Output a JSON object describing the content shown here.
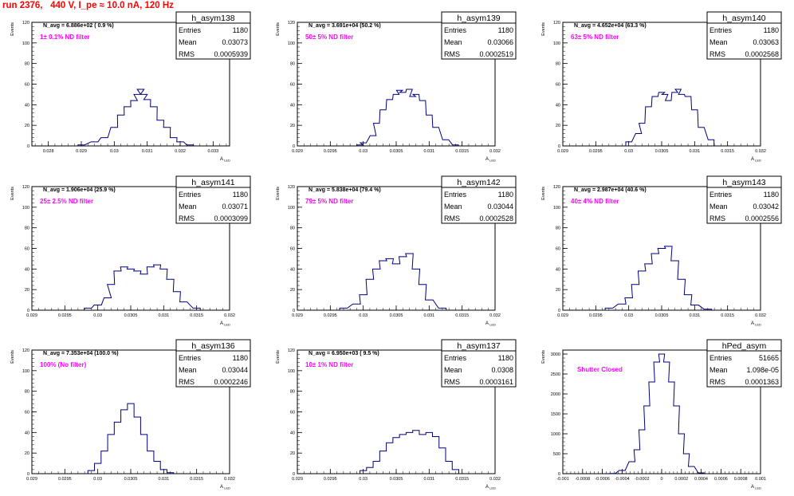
{
  "page_title": "run 2376,   440 V, I_pe ≈ 10.0 nA, 120 Hz",
  "stat_labels": {
    "entries": "Entries",
    "mean": "Mean",
    "rms": "RMS"
  },
  "yaxis_label": "Events",
  "xaxis_label": "A",
  "xaxis_sub": "LED",
  "colors": {
    "hist": "#000080",
    "annotation": "#ff00ff",
    "title": "#ff0000",
    "axis": "#000000"
  },
  "chart_data": [
    {
      "type": "bar",
      "name": "h_asym138",
      "navg": "N_avg = 6.886e+02 ( 0.9 %)",
      "note": "1± 0.1% ND filter",
      "stats": {
        "entries": "1180",
        "mean": "0.03073",
        "rms": "0.0005939"
      },
      "xlim": [
        0.0275,
        0.0335
      ],
      "ylim": [
        0,
        120
      ],
      "yticks": [
        0,
        20,
        40,
        60,
        80,
        100,
        120
      ],
      "xticks": [
        "0.028",
        "0.029",
        "0.03",
        "0.031",
        "0.032",
        "0.033"
      ],
      "xtick_vals": [
        0.028,
        0.029,
        0.03,
        0.031,
        0.032,
        0.033
      ],
      "x": [
        0.029,
        0.0294,
        0.0297,
        0.03,
        0.0302,
        0.0304,
        0.0306,
        0.0307,
        0.0308,
        0.0309,
        0.031,
        0.0312,
        0.0314,
        0.0316,
        0.0318,
        0.032,
        0.0323
      ],
      "values": [
        1,
        4,
        8,
        18,
        30,
        38,
        44,
        50,
        55,
        50,
        45,
        38,
        25,
        18,
        8,
        4,
        1
      ]
    },
    {
      "type": "bar",
      "name": "h_asym139",
      "navg": "N_avg = 3.691e+04 (50.2 %)",
      "note": "50± 5% ND filter",
      "stats": {
        "entries": "1180",
        "mean": "0.03066",
        "rms": "0.0002519"
      },
      "xlim": [
        0.029,
        0.032
      ],
      "ylim": [
        0,
        120
      ],
      "yticks": [
        0,
        20,
        40,
        60,
        80,
        100,
        120
      ],
      "xticks": [
        "0.029",
        "0.0295",
        "0.03",
        "0.0305",
        "0.031",
        "0.0315",
        "0.032"
      ],
      "xtick_vals": [
        0.029,
        0.0295,
        0.03,
        0.0305,
        0.031,
        0.0315,
        0.032
      ],
      "x": [
        0.02995,
        0.03,
        0.03015,
        0.0302,
        0.0303,
        0.0304,
        0.0305,
        0.03055,
        0.0306,
        0.0307,
        0.03075,
        0.0308,
        0.0309,
        0.031,
        0.0311,
        0.03125,
        0.0314
      ],
      "values": [
        1,
        3,
        10,
        22,
        35,
        45,
        50,
        54,
        52,
        55,
        48,
        50,
        44,
        30,
        18,
        6,
        1
      ]
    },
    {
      "type": "bar",
      "name": "h_asym140",
      "navg": "N_avg = 4.652e+04 (63.3 %)",
      "note": "63± 5% ND filter",
      "stats": {
        "entries": "1180",
        "mean": "0.03063",
        "rms": "0.0002568"
      },
      "xlim": [
        0.029,
        0.032
      ],
      "ylim": [
        0,
        120
      ],
      "yticks": [
        0,
        20,
        40,
        60,
        80,
        100,
        120
      ],
      "xticks": [
        "0.029",
        "0.0295",
        "0.03",
        "0.0305",
        "0.031",
        "0.0315",
        "0.032"
      ],
      "xtick_vals": [
        0.029,
        0.0295,
        0.03,
        0.0305,
        0.031,
        0.0315,
        0.032
      ],
      "x": [
        0.03,
        0.03015,
        0.0302,
        0.0303,
        0.0304,
        0.0305,
        0.03055,
        0.0306,
        0.0307,
        0.03075,
        0.0308,
        0.0309,
        0.031,
        0.0311,
        0.03125
      ],
      "values": [
        4,
        12,
        22,
        38,
        48,
        52,
        50,
        44,
        52,
        55,
        50,
        48,
        35,
        18,
        6
      ]
    },
    {
      "type": "bar",
      "name": "h_asym141",
      "navg": "N_avg = 1.906e+04 (25.9 %)",
      "note": "25± 2.5% ND filter",
      "stats": {
        "entries": "1180",
        "mean": "0.03071",
        "rms": "0.0003099"
      },
      "xlim": [
        0.029,
        0.032
      ],
      "ylim": [
        0,
        120
      ],
      "yticks": [
        0,
        20,
        40,
        60,
        80,
        100,
        120
      ],
      "xticks": [
        "0.029",
        "0.0295",
        "0.03",
        "0.0305",
        "0.031",
        "0.0315",
        "0.032"
      ],
      "xtick_vals": [
        0.029,
        0.0295,
        0.03,
        0.0305,
        0.031,
        0.0315,
        0.032
      ],
      "x": [
        0.02985,
        0.03,
        0.03015,
        0.0302,
        0.0303,
        0.0304,
        0.0305,
        0.0306,
        0.0307,
        0.0308,
        0.0309,
        0.031,
        0.0311,
        0.0312,
        0.0313,
        0.0315
      ],
      "values": [
        2,
        5,
        12,
        25,
        38,
        42,
        40,
        38,
        35,
        42,
        44,
        40,
        30,
        18,
        8,
        2
      ]
    },
    {
      "type": "bar",
      "name": "h_asym142",
      "navg": "N_avg = 5.838e+04 (79.4 %)",
      "note": "79± 5% ND filter",
      "stats": {
        "entries": "1180",
        "mean": "0.03044",
        "rms": "0.0002528"
      },
      "xlim": [
        0.029,
        0.032
      ],
      "ylim": [
        0,
        120
      ],
      "yticks": [
        0,
        20,
        40,
        60,
        80,
        100,
        120
      ],
      "xticks": [
        "0.029",
        "0.0295",
        "0.03",
        "0.0305",
        "0.031",
        "0.0315",
        "0.032"
      ],
      "xtick_vals": [
        0.029,
        0.0295,
        0.03,
        0.0305,
        0.031,
        0.0315,
        0.032
      ],
      "x": [
        0.0297,
        0.0299,
        0.03,
        0.0301,
        0.0302,
        0.0303,
        0.0304,
        0.0305,
        0.0306,
        0.0307,
        0.0308,
        0.0309,
        0.031,
        0.0312
      ],
      "values": [
        2,
        6,
        15,
        30,
        40,
        48,
        50,
        45,
        52,
        55,
        40,
        25,
        10,
        2
      ]
    },
    {
      "type": "bar",
      "name": "h_asym143",
      "navg": "N_avg = 2.987e+04 (40.6 %)",
      "note": "40± 4% ND filter",
      "stats": {
        "entries": "1180",
        "mean": "0.03042",
        "rms": "0.0002556"
      },
      "xlim": [
        0.029,
        0.032
      ],
      "ylim": [
        0,
        120
      ],
      "yticks": [
        0,
        20,
        40,
        60,
        80,
        100,
        120
      ],
      "xticks": [
        "0.029",
        "0.0295",
        "0.03",
        "0.0305",
        "0.031",
        "0.0315",
        "0.032"
      ],
      "xtick_vals": [
        0.029,
        0.0295,
        0.03,
        0.0305,
        0.031,
        0.0315,
        0.032
      ],
      "x": [
        0.0297,
        0.0299,
        0.03,
        0.0301,
        0.0302,
        0.0303,
        0.0304,
        0.0305,
        0.0306,
        0.0307,
        0.0308,
        0.0309,
        0.031,
        0.0312
      ],
      "values": [
        2,
        6,
        12,
        25,
        38,
        45,
        55,
        60,
        62,
        48,
        30,
        15,
        5,
        1
      ]
    },
    {
      "type": "bar",
      "name": "h_asym136",
      "navg": "N_avg = 7.353e+04 (100.0 %)",
      "note": "100% (No filter)",
      "stats": {
        "entries": "1180",
        "mean": "0.03044",
        "rms": "0.0002246"
      },
      "xlim": [
        0.029,
        0.032
      ],
      "ylim": [
        0,
        120
      ],
      "yticks": [
        0,
        20,
        40,
        60,
        80,
        100,
        120
      ],
      "xticks": [
        "0.029",
        "0.0295",
        "0.03",
        "0.0305",
        "0.031",
        "0.0315",
        "0.032"
      ],
      "xtick_vals": [
        0.029,
        0.0295,
        0.03,
        0.0305,
        0.031,
        0.0315,
        0.032
      ],
      "x": [
        0.0299,
        0.03,
        0.0301,
        0.0302,
        0.0303,
        0.0304,
        0.0305,
        0.0306,
        0.0307,
        0.0308,
        0.0309,
        0.031,
        0.0311
      ],
      "values": [
        3,
        10,
        22,
        38,
        50,
        62,
        68,
        55,
        38,
        22,
        12,
        4,
        1
      ]
    },
    {
      "type": "bar",
      "name": "h_asym137",
      "navg": "N_avg = 6.950e+03 ( 9.5 %)",
      "note": "10± 1% ND filter",
      "stats": {
        "entries": "1180",
        "mean": "0.0308",
        "rms": "0.0003161"
      },
      "xlim": [
        0.029,
        0.032
      ],
      "ylim": [
        0,
        120
      ],
      "yticks": [
        0,
        20,
        40,
        60,
        80,
        100,
        120
      ],
      "xticks": [
        "0.029",
        "0.0295",
        "0.03",
        "0.0305",
        "0.031",
        "0.0315",
        "0.032"
      ],
      "xtick_vals": [
        0.029,
        0.0295,
        0.03,
        0.0305,
        0.031,
        0.0315,
        0.032
      ],
      "x": [
        0.03,
        0.0301,
        0.0302,
        0.0303,
        0.0304,
        0.0305,
        0.0306,
        0.0307,
        0.0308,
        0.0309,
        0.031,
        0.0311,
        0.0312,
        0.0313,
        0.0314
      ],
      "values": [
        3,
        6,
        12,
        22,
        30,
        35,
        38,
        40,
        42,
        38,
        40,
        36,
        25,
        12,
        4
      ]
    },
    {
      "type": "bar",
      "name": "hPed_asym",
      "navg": "",
      "note": "Shutter Closed",
      "stats": {
        "entries": "51665",
        "mean": "1.098e-05",
        "rms": "0.0001363"
      },
      "xlim": [
        -0.001,
        0.001
      ],
      "ylim": [
        0,
        3100
      ],
      "yticks": [
        0,
        500,
        1000,
        1500,
        2000,
        2500,
        3000
      ],
      "xticks": [
        "-0.001",
        "-0.0008",
        "-0.0006",
        "-0.0004",
        "-0.0002",
        "0",
        "0.0002",
        "0.0004",
        "0.0006",
        "0.0008",
        "0.001"
      ],
      "xtick_vals": [
        -0.001,
        -0.0008,
        -0.0006,
        -0.0004,
        -0.0002,
        0,
        0.0002,
        0.0004,
        0.0006,
        0.0008,
        0.001
      ],
      "x": [
        -0.0005,
        -0.0004,
        -0.0003,
        -0.00025,
        -0.0002,
        -0.00015,
        -0.0001,
        -5e-05,
        0,
        5e-05,
        0.0001,
        0.00015,
        0.0002,
        0.00025,
        0.0003,
        0.0004
      ],
      "values": [
        5,
        80,
        300,
        600,
        1100,
        1700,
        2300,
        2800,
        3000,
        2800,
        2300,
        1700,
        1000,
        500,
        180,
        20
      ]
    }
  ]
}
